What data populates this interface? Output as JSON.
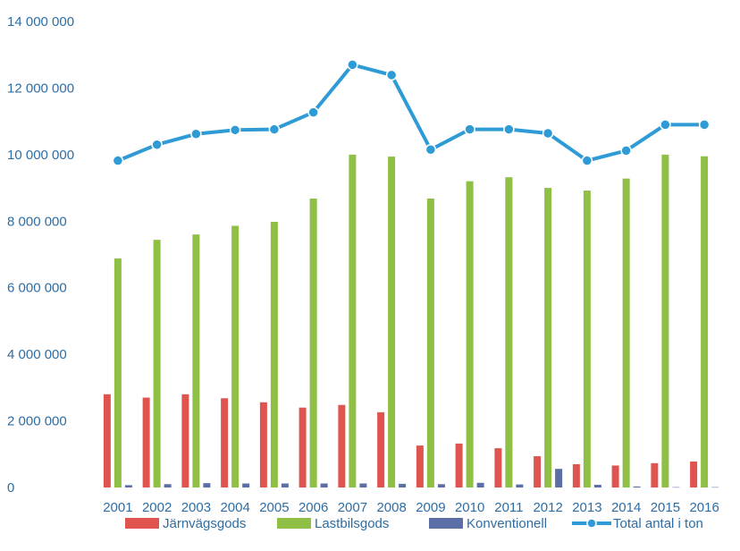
{
  "chart_data": {
    "type": "bar",
    "title": "",
    "xlabel": "",
    "ylabel": "",
    "ylim": [
      0,
      14000000
    ],
    "yticks": [
      0,
      2000000,
      4000000,
      6000000,
      8000000,
      10000000,
      12000000,
      14000000
    ],
    "ytick_labels": [
      "0",
      "2 000 000",
      "4 000 000",
      "6 000 000",
      "8 000 000",
      "10 000 000",
      "12 000 000",
      "14 000 000"
    ],
    "grid": false,
    "legend_position": "bottom",
    "categories": [
      "2001",
      "2002",
      "2003",
      "2004",
      "2005",
      "2006",
      "2007",
      "2008",
      "2009",
      "2010",
      "2011",
      "2012",
      "2013",
      "2014",
      "2015",
      "2016"
    ],
    "series": [
      {
        "name": "Järnvägsgods",
        "kind": "bar",
        "color": "#e0544f",
        "values": [
          2800000,
          2700000,
          2800000,
          2680000,
          2560000,
          2400000,
          2480000,
          2260000,
          1260000,
          1320000,
          1180000,
          940000,
          700000,
          660000,
          730000,
          780000
        ]
      },
      {
        "name": "Lastbilsgods",
        "kind": "bar",
        "color": "#8fbf45",
        "values": [
          6880000,
          7440000,
          7600000,
          7860000,
          7980000,
          8680000,
          10000000,
          9940000,
          8680000,
          9200000,
          9320000,
          9000000,
          8920000,
          9280000,
          10000000,
          9950000
        ]
      },
      {
        "name": "Konventionell",
        "kind": "bar",
        "color": "#5b6ea6",
        "values": [
          70000,
          100000,
          130000,
          120000,
          120000,
          120000,
          120000,
          110000,
          100000,
          140000,
          90000,
          560000,
          80000,
          30000,
          10000,
          10000
        ]
      },
      {
        "name": "Total antal i ton",
        "kind": "line",
        "color": "#2e9bd6",
        "values": [
          9820000,
          10300000,
          10620000,
          10740000,
          10760000,
          11270000,
          12700000,
          12390000,
          10150000,
          10760000,
          10760000,
          10640000,
          9820000,
          10120000,
          10900000,
          10900000
        ]
      }
    ]
  }
}
